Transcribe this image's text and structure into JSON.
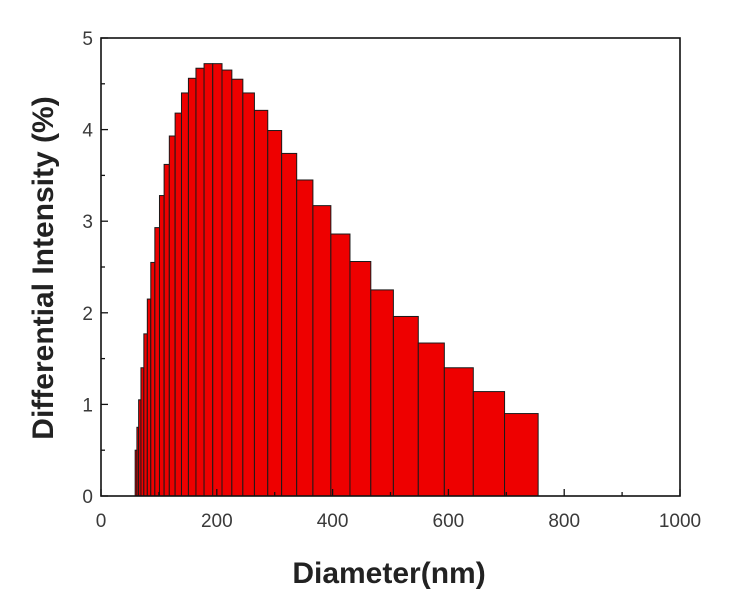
{
  "colors": {
    "bar_fill": "#ee0000",
    "bar_stroke": "#1a1a1a",
    "axis": "#111111"
  },
  "chart_data": {
    "type": "bar",
    "xlabel": "Diameter(nm)",
    "ylabel": "Differential Intensity (%)",
    "xlim": [
      0,
      1000
    ],
    "ylim": [
      0,
      5
    ],
    "xticks": [
      0,
      200,
      400,
      600,
      800,
      1000
    ],
    "yticks": [
      0,
      1,
      2,
      3,
      4,
      5
    ],
    "grid": false,
    "bars": [
      {
        "left": 59,
        "right": 62,
        "value": 0.5
      },
      {
        "left": 62,
        "right": 65,
        "value": 0.75
      },
      {
        "left": 65,
        "right": 69,
        "value": 1.05
      },
      {
        "left": 69,
        "right": 74,
        "value": 1.4
      },
      {
        "left": 74,
        "right": 80,
        "value": 1.77
      },
      {
        "left": 80,
        "right": 86,
        "value": 2.15
      },
      {
        "left": 86,
        "right": 93,
        "value": 2.55
      },
      {
        "left": 93,
        "right": 101,
        "value": 2.93
      },
      {
        "left": 101,
        "right": 109,
        "value": 3.28
      },
      {
        "left": 109,
        "right": 118,
        "value": 3.62
      },
      {
        "left": 118,
        "right": 128,
        "value": 3.93
      },
      {
        "left": 128,
        "right": 139,
        "value": 4.18
      },
      {
        "left": 139,
        "right": 151,
        "value": 4.4
      },
      {
        "left": 151,
        "right": 164,
        "value": 4.56
      },
      {
        "left": 164,
        "right": 178,
        "value": 4.67
      },
      {
        "left": 178,
        "right": 193,
        "value": 4.72
      },
      {
        "left": 193,
        "right": 209,
        "value": 4.72
      },
      {
        "left": 209,
        "right": 226,
        "value": 4.65
      },
      {
        "left": 226,
        "right": 245,
        "value": 4.55
      },
      {
        "left": 245,
        "right": 265,
        "value": 4.4
      },
      {
        "left": 265,
        "right": 288,
        "value": 4.21
      },
      {
        "left": 288,
        "right": 312,
        "value": 3.99
      },
      {
        "left": 312,
        "right": 338,
        "value": 3.74
      },
      {
        "left": 338,
        "right": 366,
        "value": 3.45
      },
      {
        "left": 366,
        "right": 397,
        "value": 3.17
      },
      {
        "left": 397,
        "right": 430,
        "value": 2.86
      },
      {
        "left": 430,
        "right": 466,
        "value": 2.56
      },
      {
        "left": 466,
        "right": 505,
        "value": 2.25
      },
      {
        "left": 505,
        "right": 548,
        "value": 1.96
      },
      {
        "left": 548,
        "right": 593,
        "value": 1.67
      },
      {
        "left": 593,
        "right": 643,
        "value": 1.4
      },
      {
        "left": 643,
        "right": 697,
        "value": 1.14
      },
      {
        "left": 697,
        "right": 755,
        "value": 0.9
      }
    ]
  }
}
